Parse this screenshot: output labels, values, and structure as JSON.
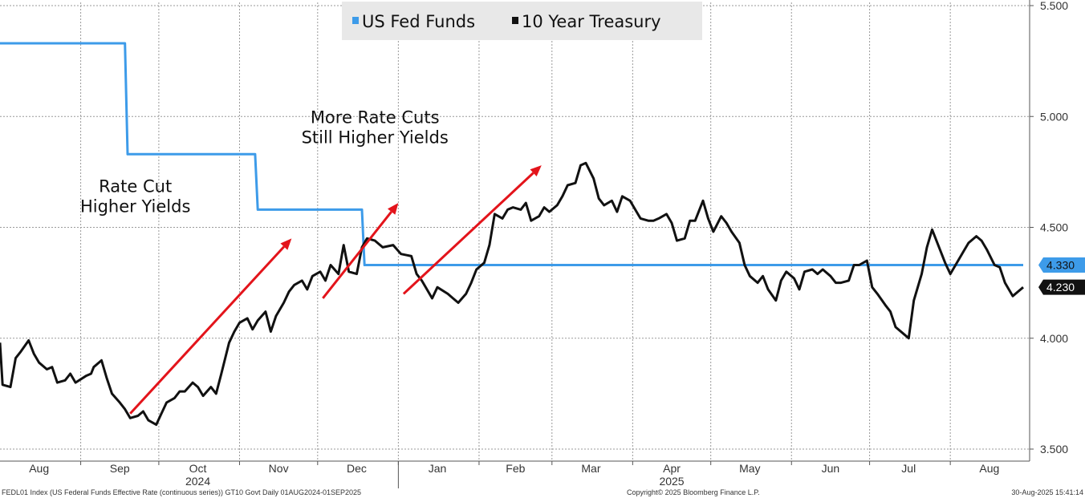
{
  "chart_data": {
    "type": "line",
    "ylim": [
      3.5,
      5.5
    ],
    "y_ticks": [
      "3.500",
      "4.000",
      "4.500",
      "5.000",
      "5.500"
    ],
    "x_month_labels": [
      {
        "label": "Aug",
        "date": "2024-08-16"
      },
      {
        "label": "Sep",
        "date": "2024-09-16"
      },
      {
        "label": "Oct",
        "date": "2024-10-16"
      },
      {
        "label": "Nov",
        "date": "2024-11-16"
      },
      {
        "label": "Dec",
        "date": "2024-12-16"
      },
      {
        "label": "Jan",
        "date": "2025-01-16"
      },
      {
        "label": "Feb",
        "date": "2025-02-15"
      },
      {
        "label": "Mar",
        "date": "2025-03-16"
      },
      {
        "label": "Apr",
        "date": "2025-04-16"
      },
      {
        "label": "May",
        "date": "2025-05-16"
      },
      {
        "label": "Jun",
        "date": "2025-06-16"
      },
      {
        "label": "Jul",
        "date": "2025-07-16"
      },
      {
        "label": "Aug",
        "date": "2025-08-16"
      }
    ],
    "x_year_labels": [
      {
        "label": "2024",
        "date": "2024-10-16"
      },
      {
        "label": "2025",
        "date": "2025-04-16"
      }
    ],
    "grid": true,
    "legend_position": "top-center",
    "series": [
      {
        "name": "US Fed Funds",
        "color": "#3d9be9",
        "points": [
          [
            "2024-08-01",
            5.33
          ],
          [
            "2024-09-18",
            5.33
          ],
          [
            "2024-09-19",
            4.83
          ],
          [
            "2024-11-07",
            4.83
          ],
          [
            "2024-11-08",
            4.58
          ],
          [
            "2024-12-18",
            4.58
          ],
          [
            "2024-12-19",
            4.33
          ],
          [
            "2025-08-29",
            4.33
          ]
        ],
        "last_value_label": "4.330"
      },
      {
        "name": "10 Year Treasury",
        "color": "#111111",
        "points": [
          [
            "2024-08-01",
            3.98
          ],
          [
            "2024-08-02",
            3.79
          ],
          [
            "2024-08-05",
            3.78
          ],
          [
            "2024-08-07",
            3.91
          ],
          [
            "2024-08-09",
            3.94
          ],
          [
            "2024-08-12",
            3.99
          ],
          [
            "2024-08-14",
            3.93
          ],
          [
            "2024-08-16",
            3.89
          ],
          [
            "2024-08-19",
            3.86
          ],
          [
            "2024-08-21",
            3.87
          ],
          [
            "2024-08-23",
            3.8
          ],
          [
            "2024-08-26",
            3.81
          ],
          [
            "2024-08-28",
            3.84
          ],
          [
            "2024-08-30",
            3.8
          ],
          [
            "2024-09-03",
            3.83
          ],
          [
            "2024-09-05",
            3.84
          ],
          [
            "2024-09-06",
            3.87
          ],
          [
            "2024-09-09",
            3.9
          ],
          [
            "2024-09-11",
            3.82
          ],
          [
            "2024-09-13",
            3.75
          ],
          [
            "2024-09-16",
            3.71
          ],
          [
            "2024-09-18",
            3.68
          ],
          [
            "2024-09-20",
            3.64
          ],
          [
            "2024-09-23",
            3.65
          ],
          [
            "2024-09-25",
            3.67
          ],
          [
            "2024-09-27",
            3.63
          ],
          [
            "2024-09-30",
            3.61
          ],
          [
            "2024-10-02",
            3.66
          ],
          [
            "2024-10-04",
            3.71
          ],
          [
            "2024-10-07",
            3.73
          ],
          [
            "2024-10-09",
            3.76
          ],
          [
            "2024-10-11",
            3.76
          ],
          [
            "2024-10-14",
            3.8
          ],
          [
            "2024-10-16",
            3.78
          ],
          [
            "2024-10-18",
            3.74
          ],
          [
            "2024-10-21",
            3.78
          ],
          [
            "2024-10-23",
            3.75
          ],
          [
            "2024-10-25",
            3.84
          ],
          [
            "2024-10-28",
            3.98
          ],
          [
            "2024-10-30",
            4.03
          ],
          [
            "2024-11-01",
            4.07
          ],
          [
            "2024-11-04",
            4.09
          ],
          [
            "2024-11-06",
            4.04
          ],
          [
            "2024-11-08",
            4.08
          ],
          [
            "2024-11-11",
            4.12
          ],
          [
            "2024-11-13",
            4.03
          ],
          [
            "2024-11-15",
            4.1
          ],
          [
            "2024-11-18",
            4.16
          ],
          [
            "2024-11-20",
            4.21
          ],
          [
            "2024-11-22",
            4.24
          ],
          [
            "2024-11-25",
            4.26
          ],
          [
            "2024-11-27",
            4.22
          ],
          [
            "2024-11-29",
            4.28
          ],
          [
            "2024-12-02",
            4.3
          ],
          [
            "2024-12-04",
            4.26
          ],
          [
            "2024-12-06",
            4.33
          ],
          [
            "2024-12-09",
            4.29
          ],
          [
            "2024-12-11",
            4.42
          ],
          [
            "2024-12-13",
            4.3
          ],
          [
            "2024-12-16",
            4.29
          ],
          [
            "2024-12-18",
            4.41
          ],
          [
            "2024-12-20",
            4.45
          ],
          [
            "2024-12-23",
            4.44
          ],
          [
            "2024-12-26",
            4.41
          ],
          [
            "2024-12-30",
            4.42
          ],
          [
            "2025-01-02",
            4.38
          ],
          [
            "2025-01-06",
            4.37
          ],
          [
            "2025-01-08",
            4.29
          ],
          [
            "2025-01-10",
            4.26
          ],
          [
            "2025-01-14",
            4.18
          ],
          [
            "2025-01-16",
            4.23
          ],
          [
            "2025-01-20",
            4.2
          ],
          [
            "2025-01-22",
            4.18
          ],
          [
            "2025-01-24",
            4.16
          ],
          [
            "2025-01-27",
            4.2
          ],
          [
            "2025-01-29",
            4.25
          ],
          [
            "2025-01-31",
            4.31
          ],
          [
            "2025-02-03",
            4.34
          ],
          [
            "2025-02-05",
            4.42
          ],
          [
            "2025-02-07",
            4.56
          ],
          [
            "2025-02-10",
            4.54
          ],
          [
            "2025-02-12",
            4.58
          ],
          [
            "2025-02-14",
            4.59
          ],
          [
            "2025-02-17",
            4.58
          ],
          [
            "2025-02-19",
            4.61
          ],
          [
            "2025-02-21",
            4.53
          ],
          [
            "2025-02-24",
            4.55
          ],
          [
            "2025-02-26",
            4.59
          ],
          [
            "2025-02-28",
            4.57
          ],
          [
            "2025-03-03",
            4.6
          ],
          [
            "2025-03-05",
            4.64
          ],
          [
            "2025-03-07",
            4.69
          ],
          [
            "2025-03-10",
            4.7
          ],
          [
            "2025-03-12",
            4.78
          ],
          [
            "2025-03-14",
            4.79
          ],
          [
            "2025-03-17",
            4.72
          ],
          [
            "2025-03-19",
            4.63
          ],
          [
            "2025-03-21",
            4.6
          ],
          [
            "2025-03-24",
            4.62
          ],
          [
            "2025-03-26",
            4.57
          ],
          [
            "2025-03-28",
            4.64
          ],
          [
            "2025-03-31",
            4.62
          ],
          [
            "2025-04-02",
            4.58
          ],
          [
            "2025-04-04",
            4.54
          ],
          [
            "2025-04-07",
            4.53
          ],
          [
            "2025-04-09",
            4.53
          ],
          [
            "2025-04-11",
            4.54
          ],
          [
            "2025-04-14",
            4.56
          ],
          [
            "2025-04-16",
            4.52
          ],
          [
            "2025-04-18",
            4.44
          ],
          [
            "2025-04-21",
            4.45
          ],
          [
            "2025-04-23",
            4.53
          ],
          [
            "2025-04-25",
            4.53
          ],
          [
            "2025-04-28",
            4.62
          ],
          [
            "2025-04-30",
            4.54
          ],
          [
            "2025-05-02",
            4.48
          ],
          [
            "2025-05-05",
            4.55
          ],
          [
            "2025-05-07",
            4.52
          ],
          [
            "2025-05-09",
            4.48
          ],
          [
            "2025-05-12",
            4.43
          ],
          [
            "2025-05-14",
            4.33
          ],
          [
            "2025-05-16",
            4.28
          ],
          [
            "2025-05-19",
            4.25
          ],
          [
            "2025-05-21",
            4.28
          ],
          [
            "2025-05-23",
            4.22
          ],
          [
            "2025-05-26",
            4.17
          ],
          [
            "2025-05-28",
            4.26
          ],
          [
            "2025-05-30",
            4.3
          ],
          [
            "2025-06-02",
            4.27
          ],
          [
            "2025-06-04",
            4.22
          ],
          [
            "2025-06-06",
            4.3
          ],
          [
            "2025-06-09",
            4.31
          ],
          [
            "2025-06-11",
            4.29
          ],
          [
            "2025-06-13",
            4.31
          ],
          [
            "2025-06-16",
            4.28
          ],
          [
            "2025-06-18",
            4.25
          ],
          [
            "2025-06-20",
            4.25
          ],
          [
            "2025-06-23",
            4.26
          ],
          [
            "2025-06-25",
            4.33
          ],
          [
            "2025-06-27",
            4.33
          ],
          [
            "2025-06-30",
            4.35
          ],
          [
            "2025-07-02",
            4.23
          ],
          [
            "2025-07-04",
            4.2
          ],
          [
            "2025-07-07",
            4.15
          ],
          [
            "2025-07-09",
            4.12
          ],
          [
            "2025-07-11",
            4.05
          ],
          [
            "2025-07-14",
            4.02
          ],
          [
            "2025-07-16",
            4.0
          ],
          [
            "2025-07-18",
            4.17
          ],
          [
            "2025-07-21",
            4.29
          ],
          [
            "2025-07-23",
            4.41
          ],
          [
            "2025-07-25",
            4.49
          ],
          [
            "2025-07-28",
            4.4
          ],
          [
            "2025-07-30",
            4.34
          ],
          [
            "2025-08-01",
            4.29
          ],
          [
            "2025-08-04",
            4.35
          ],
          [
            "2025-08-06",
            4.39
          ],
          [
            "2025-08-08",
            4.43
          ],
          [
            "2025-08-11",
            4.46
          ],
          [
            "2025-08-13",
            4.44
          ],
          [
            "2025-08-15",
            4.4
          ],
          [
            "2025-08-18",
            4.33
          ],
          [
            "2025-08-20",
            4.32
          ],
          [
            "2025-08-22",
            4.25
          ],
          [
            "2025-08-25",
            4.19
          ],
          [
            "2025-08-29",
            4.23
          ]
        ],
        "last_value_label": "4.230"
      }
    ],
    "arrows": [
      {
        "from": [
          "2024-09-20",
          3.66
        ],
        "to": [
          "2024-11-21",
          4.45
        ]
      },
      {
        "from": [
          "2024-12-03",
          4.18
        ],
        "to": [
          "2025-01-01",
          4.61
        ]
      },
      {
        "from": [
          "2025-01-03",
          4.2
        ],
        "to": [
          "2025-02-25",
          4.78
        ]
      }
    ],
    "annotations": [
      {
        "lines": [
          "Rate Cut",
          "Higher Yields"
        ],
        "at": [
          "2024-09-22",
          4.66
        ]
      },
      {
        "lines": [
          "More Rate Cuts",
          "Still Higher Yields"
        ],
        "at": [
          "2024-12-23",
          4.97
        ]
      }
    ]
  },
  "footer": {
    "left": "FEDL01 Index (US Federal Funds Effective Rate (continuous series)) GT10  Govt  Daily 01AUG2024-01SEP2025",
    "center": "Copyright© 2025 Bloomberg Finance L.P.",
    "right": "30-Aug-2025 15:41:14"
  }
}
